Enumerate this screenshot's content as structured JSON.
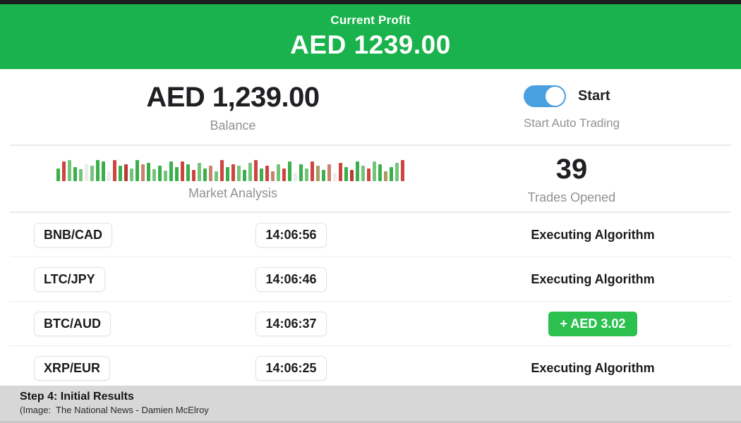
{
  "colors": {
    "header_green": "#1ab24c",
    "profit_badge_green": "#2cc04f",
    "toggle_blue": "#4a9fe0",
    "top_strip": "#1e1f21",
    "footer_gray": "#d7d7d7"
  },
  "header": {
    "subtitle": "Current Profit",
    "amount": "AED 1239.00"
  },
  "account": {
    "balance": "AED 1,239.00",
    "balance_label": "Balance"
  },
  "auto_trading": {
    "state": "on",
    "toggle_label": "Start",
    "caption": "Start Auto Trading"
  },
  "market": {
    "label": "Market Analysis",
    "trades_opened": "39",
    "trades_opened_label": "Trades Opened",
    "palette": {
      "g": "#3aaf4a",
      "G": "#74c57b",
      "r": "#cd4540",
      "R": "#b83b35",
      "s": "#c88371",
      "o": "#a89a62",
      "p": "#ececec"
    },
    "bars": [
      [
        18,
        "g"
      ],
      [
        28,
        "r"
      ],
      [
        30,
        "G"
      ],
      [
        20,
        "g"
      ],
      [
        17,
        "G"
      ],
      [
        24,
        "p"
      ],
      [
        22,
        "G"
      ],
      [
        30,
        "g"
      ],
      [
        28,
        "g"
      ],
      [
        14,
        "p"
      ],
      [
        30,
        "r"
      ],
      [
        22,
        "g"
      ],
      [
        24,
        "R"
      ],
      [
        18,
        "G"
      ],
      [
        30,
        "g"
      ],
      [
        24,
        "s"
      ],
      [
        26,
        "g"
      ],
      [
        17,
        "G"
      ],
      [
        22,
        "g"
      ],
      [
        15,
        "G"
      ],
      [
        28,
        "g"
      ],
      [
        20,
        "g"
      ],
      [
        28,
        "r"
      ],
      [
        24,
        "g"
      ],
      [
        16,
        "r"
      ],
      [
        26,
        "G"
      ],
      [
        18,
        "g"
      ],
      [
        22,
        "s"
      ],
      [
        14,
        "G"
      ],
      [
        30,
        "r"
      ],
      [
        20,
        "g"
      ],
      [
        24,
        "r"
      ],
      [
        22,
        "G"
      ],
      [
        16,
        "g"
      ],
      [
        26,
        "G"
      ],
      [
        30,
        "r"
      ],
      [
        18,
        "g"
      ],
      [
        22,
        "r"
      ],
      [
        14,
        "s"
      ],
      [
        24,
        "G"
      ],
      [
        18,
        "r"
      ],
      [
        28,
        "g"
      ],
      [
        12,
        "p"
      ],
      [
        24,
        "g"
      ],
      [
        18,
        "G"
      ],
      [
        28,
        "r"
      ],
      [
        22,
        "o"
      ],
      [
        16,
        "g"
      ],
      [
        24,
        "s"
      ],
      [
        12,
        "p"
      ],
      [
        26,
        "r"
      ],
      [
        20,
        "g"
      ],
      [
        16,
        "R"
      ],
      [
        28,
        "g"
      ],
      [
        22,
        "G"
      ],
      [
        18,
        "r"
      ],
      [
        28,
        "G"
      ],
      [
        24,
        "g"
      ],
      [
        14,
        "o"
      ],
      [
        20,
        "g"
      ],
      [
        26,
        "G"
      ],
      [
        30,
        "r"
      ]
    ]
  },
  "trades": [
    {
      "pair": "BNB/CAD",
      "time": "14:06:56",
      "status": "Executing Algorithm"
    },
    {
      "pair": "LTC/JPY",
      "time": "14:06:46",
      "status": "Executing Algorithm"
    },
    {
      "pair": "BTC/AUD",
      "time": "14:06:37",
      "profit": "+ AED 3.02"
    },
    {
      "pair": "XRP/EUR",
      "time": "14:06:25",
      "status": "Executing Algorithm"
    }
  ],
  "footer": {
    "title": "Step 4: Initial Results",
    "credit": "(Image:  The National News - Damien McElroy"
  }
}
